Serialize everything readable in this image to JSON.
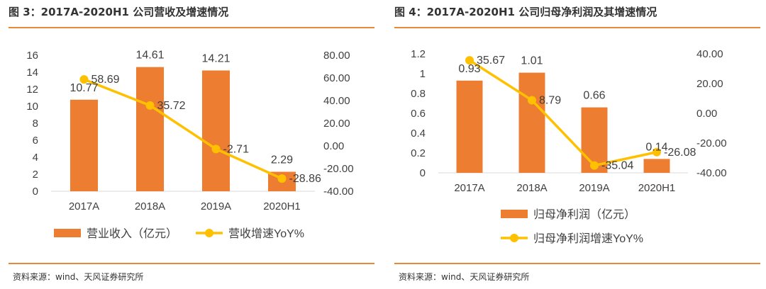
{
  "colors": {
    "bar": "#ED7D31",
    "line": "#FFC000",
    "rule": "#E68A3A",
    "text": "#333333",
    "axis": "#404040"
  },
  "left": {
    "title": "图 3：2017A-2020H1 公司营收及增速情况",
    "source": "资料来源：wind、天风证券研究所",
    "legend": {
      "bar": "营业收入（亿元）",
      "line": "营收增速YoY%"
    },
    "chart_data": {
      "type": "bar",
      "categories": [
        "2017A",
        "2018A",
        "2019A",
        "2020H1"
      ],
      "series": [
        {
          "name": "营业收入（亿元）",
          "type": "bar",
          "axis": "left",
          "values": [
            10.77,
            14.61,
            14.21,
            2.29
          ],
          "labels": [
            "10.77",
            "14.61",
            "14.21",
            "2.29"
          ]
        },
        {
          "name": "营收增速YoY%",
          "type": "line",
          "axis": "right",
          "values": [
            58.69,
            35.72,
            -2.71,
            -28.86
          ],
          "labels": [
            "58.69",
            "35.72",
            "-2.71",
            "-28.86"
          ]
        }
      ],
      "left_axis": {
        "ylim": [
          0,
          16
        ],
        "ticks": [
          "0",
          "2",
          "4",
          "6",
          "8",
          "10",
          "12",
          "14",
          "16"
        ]
      },
      "right_axis": {
        "ylim": [
          -40,
          80
        ],
        "ticks": [
          "-40.00",
          "-20.00",
          "0.00",
          "20.00",
          "40.00",
          "60.00",
          "80.00"
        ]
      },
      "legend_position": "bottom",
      "grid": false
    }
  },
  "right": {
    "title": "图 4：2017A-2020H1 公司归母净利润及其增速情况",
    "source": "资料来源：wind、天风证券研究所",
    "legend": {
      "bar": "归母净利润（亿元）",
      "line": "归母净利润增速YoY%"
    },
    "chart_data": {
      "type": "bar",
      "categories": [
        "2017A",
        "2018A",
        "2019A",
        "2020H1"
      ],
      "series": [
        {
          "name": "归母净利润（亿元）",
          "type": "bar",
          "axis": "left",
          "values": [
            0.93,
            1.01,
            0.66,
            0.14
          ],
          "labels": [
            "0.93",
            "1.01",
            "0.66",
            "0.14"
          ]
        },
        {
          "name": "归母净利润增速YoY%",
          "type": "line",
          "axis": "right",
          "values": [
            35.67,
            8.79,
            -35.04,
            -26.08
          ],
          "labels": [
            "35.67",
            "8.79",
            "-35.04",
            "-26.08"
          ]
        }
      ],
      "left_axis": {
        "ylim": [
          0,
          1.2
        ],
        "ticks": [
          "0",
          "0.2",
          "0.4",
          "0.6",
          "0.8",
          "1",
          "1.2"
        ]
      },
      "right_axis": {
        "ylim": [
          -40,
          40
        ],
        "ticks": [
          "-40.00",
          "-20.00",
          "0.00",
          "20.00",
          "40.00"
        ]
      },
      "legend_position": "bottom",
      "grid": false
    }
  }
}
